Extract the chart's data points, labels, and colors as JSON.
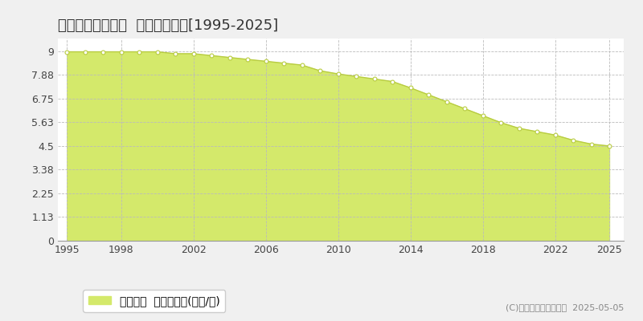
{
  "title": "ひたちなか市枝川  公示地価推移[1995-2025]",
  "years": [
    1995,
    1996,
    1997,
    1998,
    1999,
    2000,
    2001,
    2002,
    2003,
    2004,
    2005,
    2006,
    2007,
    2008,
    2009,
    2010,
    2011,
    2012,
    2013,
    2014,
    2015,
    2016,
    2017,
    2018,
    2019,
    2020,
    2021,
    2022,
    2023,
    2024,
    2025
  ],
  "values": [
    8.97,
    8.97,
    8.97,
    8.97,
    8.97,
    8.97,
    8.88,
    8.88,
    8.79,
    8.7,
    8.61,
    8.52,
    8.43,
    8.34,
    8.07,
    7.92,
    7.8,
    7.68,
    7.56,
    7.26,
    6.93,
    6.6,
    6.27,
    5.94,
    5.61,
    5.34,
    5.18,
    5.02,
    4.77,
    4.59,
    4.5
  ],
  "fill_color": "#d4e96b",
  "line_color": "#b8cc40",
  "marker_face_color": "#ffffff",
  "marker_edge_color": "#b8cc40",
  "bg_color": "#f0f0f0",
  "plot_bg_color": "#ffffff",
  "grid_color": "#bbbbbb",
  "yticks": [
    0,
    1.13,
    2.25,
    3.38,
    4.5,
    5.63,
    6.75,
    7.88,
    9
  ],
  "ylim": [
    0,
    9.6
  ],
  "xlim": [
    1994.5,
    2025.8
  ],
  "xticks": [
    1995,
    1998,
    2002,
    2006,
    2010,
    2014,
    2018,
    2022,
    2025
  ],
  "legend_label": "公示地価  平均坪単価(万円/坪)",
  "copyright": "(C)土地価格ドットコム  2025-05-05",
  "title_fontsize": 13,
  "axis_fontsize": 9,
  "legend_fontsize": 10,
  "copyright_fontsize": 8
}
